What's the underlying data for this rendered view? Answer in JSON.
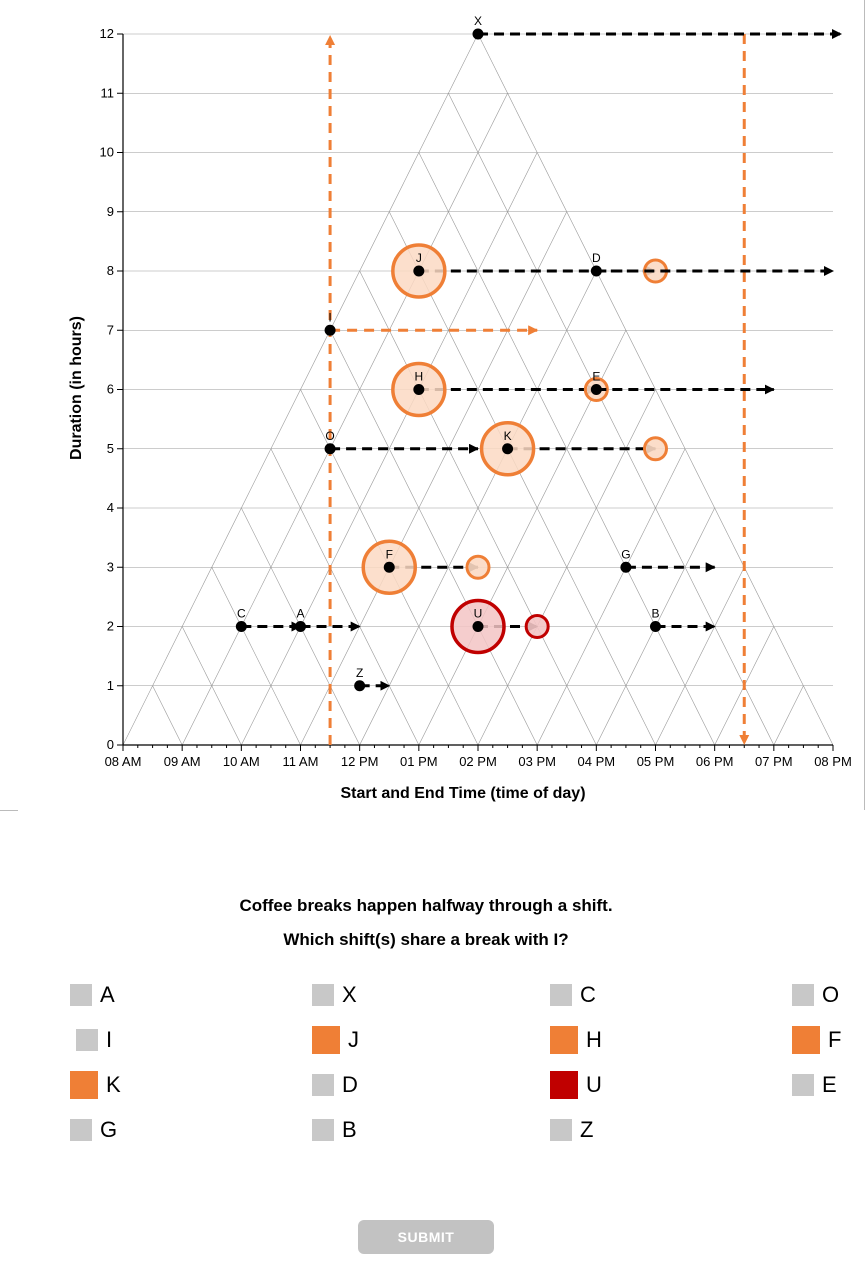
{
  "chart_data": {
    "type": "scatter",
    "xlabel": "Start and End Time (time of day)",
    "ylabel": "Duration (in hours)",
    "xlim": [
      8,
      20
    ],
    "ylim": [
      0,
      12
    ],
    "x_tick_labels": [
      "08 AM",
      "09 AM",
      "10 AM",
      "11 AM",
      "12 PM",
      "01 PM",
      "02 PM",
      "03 PM",
      "04 PM",
      "05 PM",
      "06 PM",
      "07 PM",
      "08 PM"
    ],
    "y_tick_labels": [
      "0",
      "1",
      "2",
      "3",
      "4",
      "5",
      "6",
      "7",
      "8",
      "9",
      "10",
      "11",
      "12"
    ],
    "grid": true,
    "points": [
      {
        "label": "X",
        "x": 14,
        "y": 12,
        "highlight": "none"
      },
      {
        "label": "J",
        "x": 13,
        "y": 8,
        "highlight": "orange"
      },
      {
        "label": "D",
        "x": 16,
        "y": 8,
        "highlight": "none"
      },
      {
        "label": "I",
        "x": 11.5,
        "y": 7,
        "highlight": "none"
      },
      {
        "label": "H",
        "x": 13,
        "y": 6,
        "highlight": "orange"
      },
      {
        "label": "E",
        "x": 16,
        "y": 6,
        "highlight": "none"
      },
      {
        "label": "O",
        "x": 11.5,
        "y": 5,
        "highlight": "none"
      },
      {
        "label": "K",
        "x": 14.5,
        "y": 5,
        "highlight": "orange"
      },
      {
        "label": "F",
        "x": 12.5,
        "y": 3,
        "highlight": "orange"
      },
      {
        "label": "G",
        "x": 16.5,
        "y": 3,
        "highlight": "none"
      },
      {
        "label": "C",
        "x": 10,
        "y": 2,
        "highlight": "none"
      },
      {
        "label": "A",
        "x": 11,
        "y": 2,
        "highlight": "none"
      },
      {
        "label": "U",
        "x": 14,
        "y": 2,
        "highlight": "red"
      },
      {
        "label": "B",
        "x": 17,
        "y": 2,
        "highlight": "none"
      },
      {
        "label": "Z",
        "x": 12,
        "y": 1,
        "highlight": "none"
      }
    ],
    "colors": {
      "orange": "#ef7f36",
      "red": "#c00000",
      "grid": "#999999"
    }
  },
  "question": {
    "line1": "Coffee breaks happen halfway through a shift.",
    "line2": "Which shift(s) share a break with I?"
  },
  "options": [
    {
      "label": "A",
      "state": "unselected"
    },
    {
      "label": "X",
      "state": "unselected"
    },
    {
      "label": "C",
      "state": "unselected"
    },
    {
      "label": "O",
      "state": "unselected"
    },
    {
      "label": "I",
      "state": "unselected"
    },
    {
      "label": "J",
      "state": "orange"
    },
    {
      "label": "H",
      "state": "orange"
    },
    {
      "label": "F",
      "state": "orange"
    },
    {
      "label": "K",
      "state": "orange"
    },
    {
      "label": "D",
      "state": "unselected"
    },
    {
      "label": "U",
      "state": "red"
    },
    {
      "label": "E",
      "state": "unselected"
    },
    {
      "label": "G",
      "state": "unselected"
    },
    {
      "label": "B",
      "state": "unselected"
    },
    {
      "label": "Z",
      "state": "unselected"
    }
  ],
  "submit_label": "SUBMIT"
}
